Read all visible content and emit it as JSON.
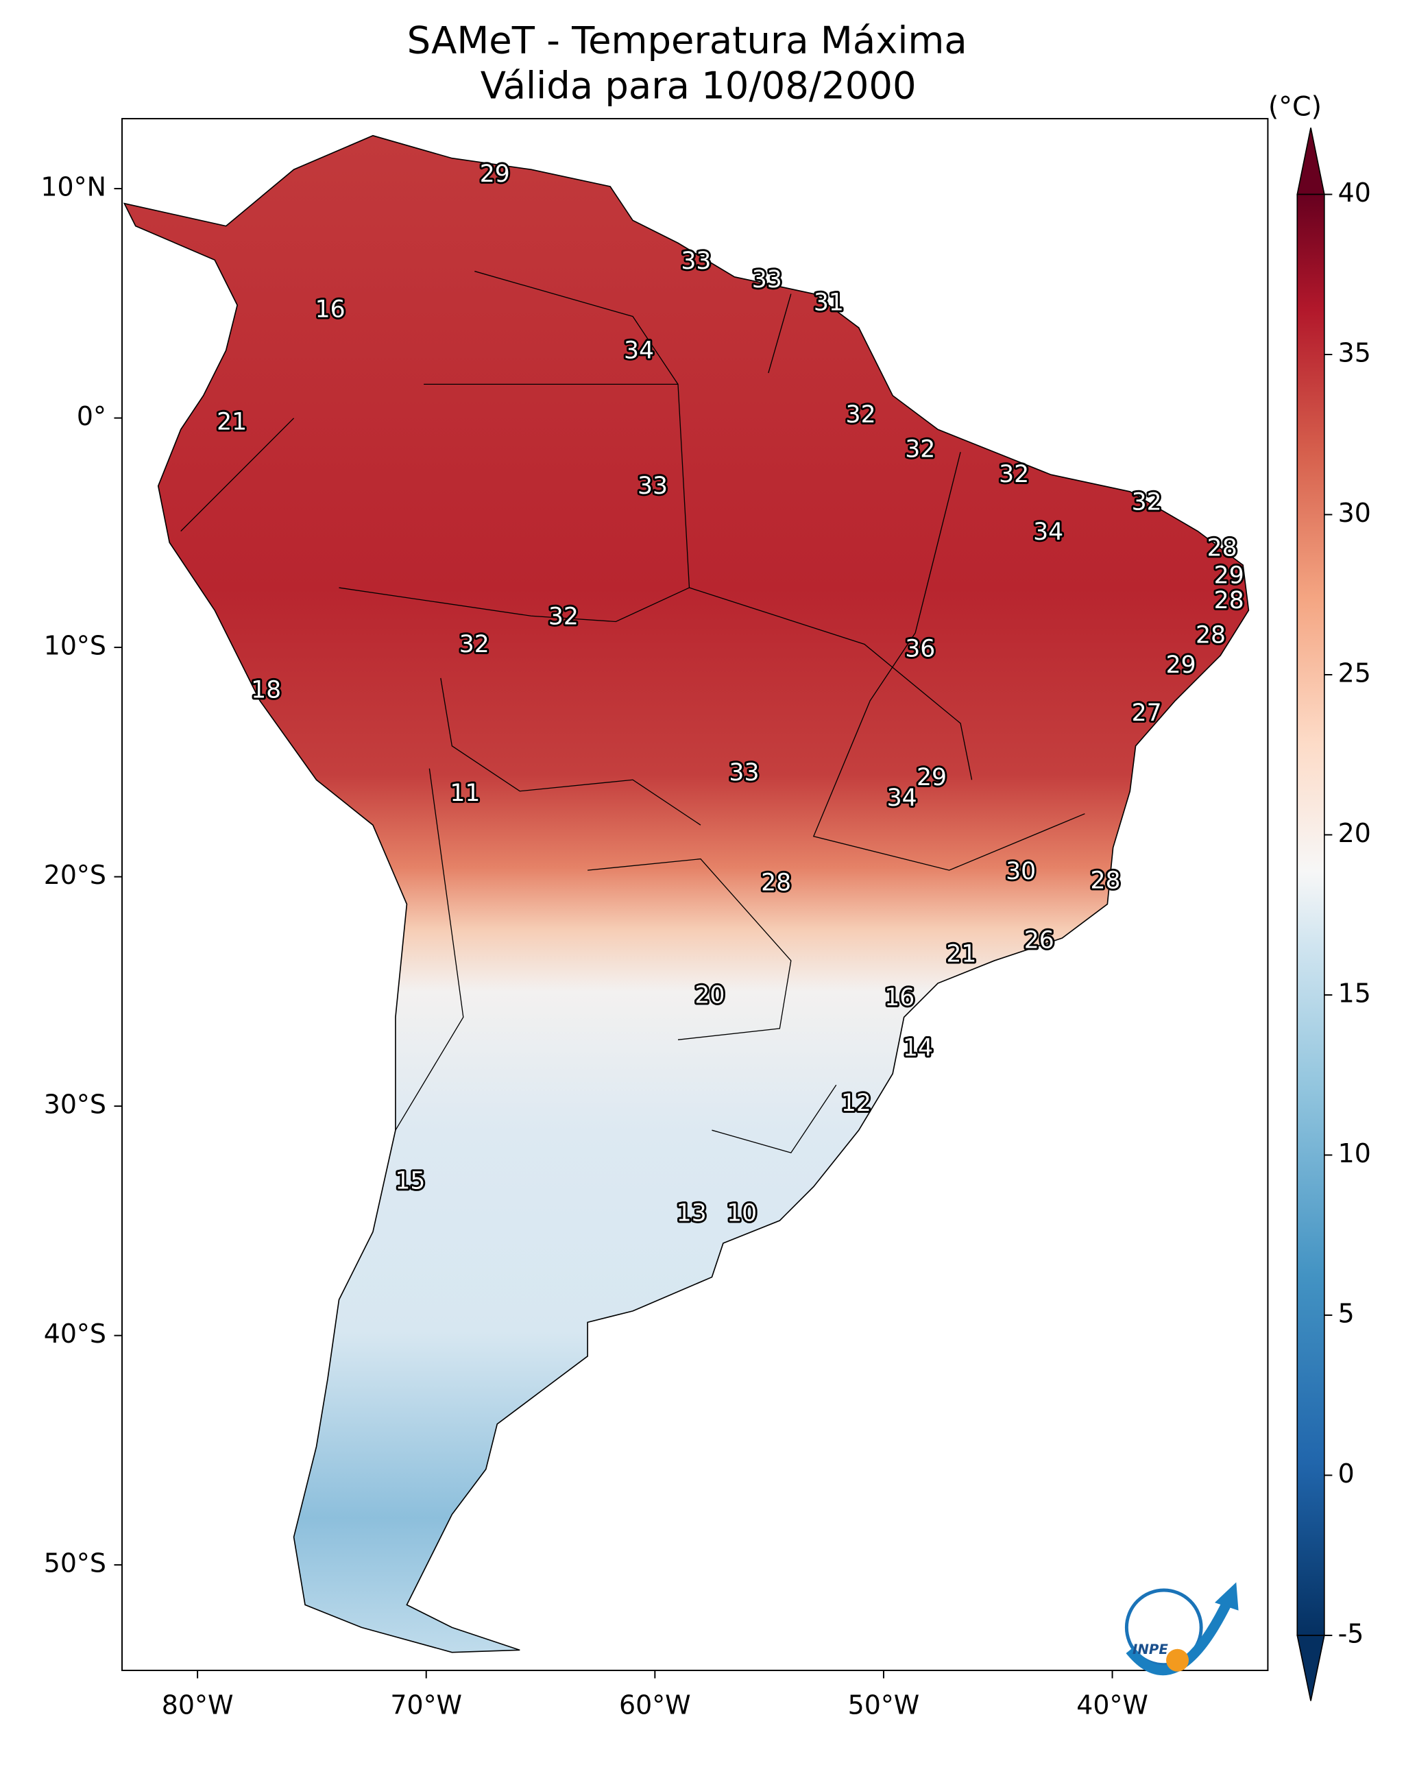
{
  "chart_data": {
    "type": "map",
    "title": "SAMeT - Temperatura Máxima",
    "subtitle": "Válida para 10/08/2000",
    "xlim": [
      -83.3,
      -33.2
    ],
    "ylim": [
      -54.6,
      13.05
    ],
    "xticks": [
      {
        "value": -80,
        "label": "80°W"
      },
      {
        "value": -70,
        "label": "70°W"
      },
      {
        "value": -60,
        "label": "60°W"
      },
      {
        "value": -50,
        "label": "50°W"
      },
      {
        "value": -40,
        "label": "40°W"
      }
    ],
    "yticks": [
      {
        "value": 10,
        "label": "10°N"
      },
      {
        "value": 0,
        "label": "0°"
      },
      {
        "value": -10,
        "label": "10°S"
      },
      {
        "value": -20,
        "label": "20°S"
      },
      {
        "value": -30,
        "label": "30°S"
      },
      {
        "value": -40,
        "label": "40°S"
      },
      {
        "value": -50,
        "label": "50°S"
      }
    ],
    "colorbar": {
      "label": "(°C)",
      "clim": [
        -5,
        40
      ],
      "ticks": [
        -5,
        0,
        5,
        10,
        15,
        20,
        25,
        30,
        35,
        40
      ]
    },
    "x": [
      -67.0,
      -74.2,
      -58.2,
      -55.1,
      -52.4,
      -60.7,
      -78.5,
      -51.0,
      -48.4,
      -60.1,
      -44.3,
      -38.5,
      -42.8,
      -35.2,
      -34.9,
      -34.9,
      -64.0,
      -67.9,
      -48.4,
      -35.7,
      -37.0,
      -77.0,
      -38.5,
      -56.1,
      -47.9,
      -68.3,
      -49.2,
      -44.0,
      -54.7,
      -40.3,
      -43.2,
      -46.6,
      -57.6,
      -49.3,
      -48.5,
      -51.2,
      -70.7,
      -58.4,
      -56.2
    ],
    "y": [
      10.6,
      4.7,
      6.8,
      6.0,
      5.0,
      2.9,
      -0.2,
      0.1,
      -1.4,
      -3.0,
      -2.5,
      -3.7,
      -5.0,
      -5.7,
      -6.9,
      -8.0,
      -8.7,
      -9.9,
      -10.1,
      -9.5,
      -10.8,
      -11.9,
      -12.9,
      -15.5,
      -15.7,
      -16.4,
      -16.6,
      -19.8,
      -20.3,
      -20.2,
      -22.8,
      -23.4,
      -25.2,
      -25.3,
      -27.5,
      -29.9,
      -33.3,
      -34.7,
      -34.7
    ],
    "values": [
      29,
      16,
      33,
      33,
      31,
      34,
      21,
      32,
      32,
      33,
      32,
      32,
      34,
      28,
      29,
      28,
      32,
      32,
      36,
      28,
      29,
      18,
      27,
      33,
      29,
      11,
      34,
      30,
      28,
      28,
      26,
      21,
      20,
      16,
      14,
      12,
      15,
      13,
      10
    ],
    "logo": "INPE"
  }
}
